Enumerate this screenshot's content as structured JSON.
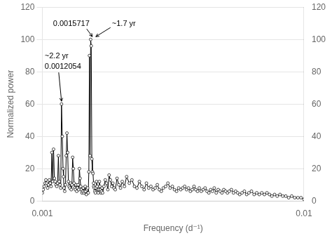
{
  "chart_data": {
    "type": "line",
    "xlabel": "Frequency (d⁻¹)",
    "ylabel": "Normalized power",
    "log": "x",
    "xlim": [
      0.001,
      0.01
    ],
    "xticks": [
      0.001,
      0.01
    ],
    "ylim": [
      0,
      120
    ],
    "yticks": [
      0,
      20,
      40,
      60,
      80,
      100,
      120
    ],
    "y2lim": [
      0,
      120
    ],
    "y2ticks": [
      0,
      20,
      40,
      60,
      80,
      100,
      120
    ],
    "grid": true,
    "color": "#000000",
    "marker": "circle",
    "x": [
      0.001,
      0.001008,
      0.001016,
      0.001024,
      0.001032,
      0.00104,
      0.001048,
      0.001056,
      0.001064,
      0.001072,
      0.00108,
      0.001088,
      0.001096,
      0.001104,
      0.001112,
      0.00112,
      0.001128,
      0.001136,
      0.001144,
      0.001152,
      0.00116,
      0.001168,
      0.001176,
      0.001184,
      0.001192,
      0.0012,
      0.001205,
      0.00121,
      0.001218,
      0.001226,
      0.001234,
      0.001242,
      0.00125,
      0.001258,
      0.001266,
      0.001274,
      0.001282,
      0.00129,
      0.001298,
      0.001306,
      0.001314,
      0.001322,
      0.00133,
      0.001338,
      0.001346,
      0.001354,
      0.001362,
      0.00137,
      0.001378,
      0.001386,
      0.001394,
      0.001402,
      0.00141,
      0.001418,
      0.001426,
      0.001434,
      0.001442,
      0.00145,
      0.001458,
      0.001466,
      0.001474,
      0.001482,
      0.00149,
      0.001498,
      0.001506,
      0.001514,
      0.001522,
      0.00153,
      0.001538,
      0.001546,
      0.001554,
      0.001562,
      0.00157,
      0.001572,
      0.00158,
      0.001588,
      0.001596,
      0.001604,
      0.001612,
      0.00162,
      0.001628,
      0.001636,
      0.001644,
      0.001652,
      0.00166,
      0.001668,
      0.001676,
      0.001684,
      0.001692,
      0.0017,
      0.00172,
      0.00174,
      0.00176,
      0.00178,
      0.0018,
      0.00182,
      0.00184,
      0.00186,
      0.00188,
      0.0019,
      0.00193,
      0.00196,
      0.00199,
      0.00202,
      0.00206,
      0.0021,
      0.00215,
      0.0022,
      0.00225,
      0.0023,
      0.00235,
      0.0024,
      0.00245,
      0.0025,
      0.00255,
      0.0026,
      0.00265,
      0.0027,
      0.00275,
      0.0028,
      0.00285,
      0.0029,
      0.00296,
      0.00302,
      0.00308,
      0.00314,
      0.0032,
      0.00326,
      0.00332,
      0.00338,
      0.00344,
      0.0035,
      0.00356,
      0.00362,
      0.00368,
      0.00374,
      0.0038,
      0.00386,
      0.00392,
      0.00398,
      0.00405,
      0.00412,
      0.00419,
      0.00426,
      0.00433,
      0.0044,
      0.00447,
      0.00454,
      0.00462,
      0.0047,
      0.00478,
      0.00486,
      0.00494,
      0.00502,
      0.0051,
      0.00518,
      0.00528,
      0.00538,
      0.00548,
      0.00558,
      0.00568,
      0.0058,
      0.00592,
      0.00604,
      0.00616,
      0.0063,
      0.00645,
      0.0066,
      0.00675,
      0.0069,
      0.00706,
      0.00722,
      0.00738,
      0.00754,
      0.00772,
      0.0079,
      0.0081,
      0.0083,
      0.00852,
      0.00874,
      0.00898,
      0.00922,
      0.00948,
      0.00974,
      0.01
    ],
    "values": [
      5,
      7,
      9,
      11,
      13,
      11,
      8,
      10,
      13,
      11,
      9,
      30,
      12,
      32,
      14,
      12,
      10,
      9,
      11,
      28,
      12,
      10,
      8,
      60,
      40,
      20,
      15,
      8,
      6,
      10,
      28,
      42,
      30,
      12,
      9,
      8,
      11,
      7,
      10,
      27,
      20,
      11,
      8,
      7,
      10,
      6,
      8,
      10,
      7,
      20,
      14,
      9,
      7,
      5,
      6,
      8,
      5,
      6,
      9,
      6,
      4,
      7,
      8,
      5,
      18,
      90,
      28,
      100,
      96,
      26,
      18,
      17,
      11,
      9,
      8,
      6,
      5,
      8,
      12,
      9,
      7,
      5,
      7,
      12,
      9,
      7,
      5,
      6,
      8,
      5,
      9,
      13,
      11,
      7,
      16,
      13,
      9,
      11,
      8,
      7,
      14,
      10,
      8,
      12,
      9,
      15,
      11,
      13,
      9,
      8,
      12,
      9,
      7,
      11,
      8,
      9,
      7,
      8,
      10,
      7,
      6,
      8,
      9,
      11,
      8,
      9,
      7,
      6,
      8,
      7,
      8,
      9,
      7,
      8,
      6,
      7,
      9,
      7,
      6,
      8,
      6,
      7,
      8,
      6,
      5,
      7,
      6,
      8,
      5,
      7,
      6,
      5,
      7,
      6,
      5,
      6,
      7,
      5,
      6,
      5,
      4,
      5,
      6,
      4,
      5,
      6,
      4,
      5,
      4,
      5,
      4,
      5,
      4,
      3,
      4,
      3,
      4,
      3,
      3,
      2,
      3,
      2,
      2,
      2,
      1
    ],
    "annotations": [
      {
        "text": "~2.2 yr",
        "x": 0.001184,
        "y": 60
      },
      {
        "text": "0.0012054",
        "x": 0.001184,
        "y": 60
      },
      {
        "text": "0.0015717",
        "x": 0.001572,
        "y": 100
      },
      {
        "text": "~1.7 yr",
        "x": 0.001572,
        "y": 100
      }
    ]
  }
}
